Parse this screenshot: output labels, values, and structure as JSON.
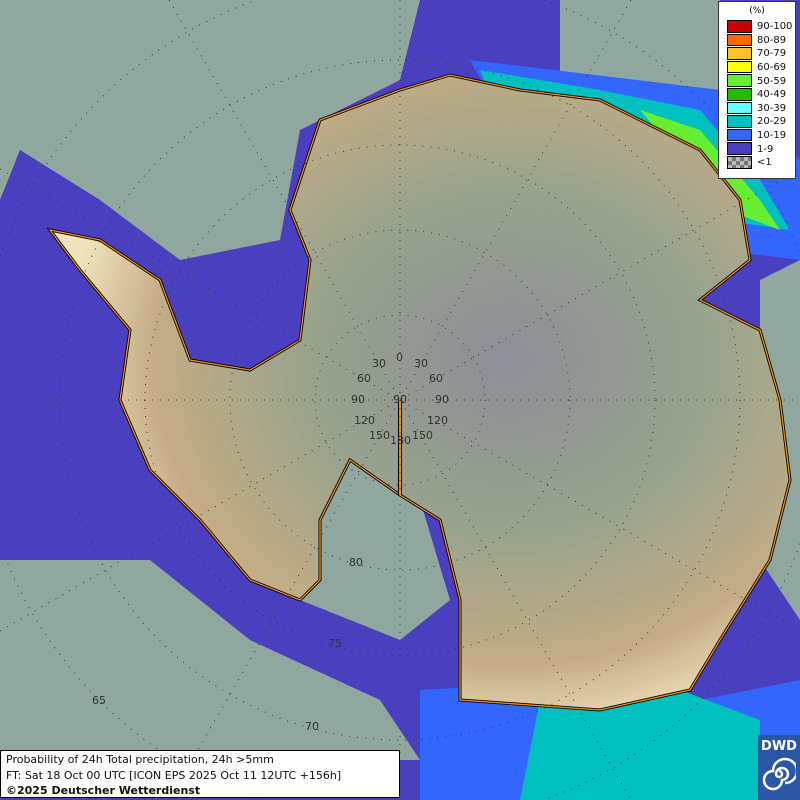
{
  "legend": {
    "unit": "(%)",
    "items": [
      {
        "label": "90-100",
        "color": "#cc0000"
      },
      {
        "label": "80-89",
        "color": "#ff6600"
      },
      {
        "label": "70-79",
        "color": "#ffc030"
      },
      {
        "label": "60-69",
        "color": "#ffff00"
      },
      {
        "label": "50-59",
        "color": "#66ee33"
      },
      {
        "label": "40-49",
        "color": "#22bb00"
      },
      {
        "label": "30-39",
        "color": "#66ffff"
      },
      {
        "label": "20-29",
        "color": "#00c0c0"
      },
      {
        "label": "10-19",
        "color": "#3366ff"
      },
      {
        "label": "1-9",
        "color": "#4a3fbf"
      },
      {
        "label": "<1",
        "color": "#9a9a9a"
      }
    ]
  },
  "grid": {
    "longitude_labels": [
      "0",
      "30",
      "30",
      "60",
      "60",
      "90",
      "90",
      "90",
      "120",
      "120",
      "150",
      "150",
      "180"
    ],
    "latitude_labels": [
      "80",
      "75",
      "70",
      "65"
    ]
  },
  "footer": {
    "line1": "Probability of 24h Total precipitation, 24h >5mm",
    "line2": "FT: Sat 18 Oct 00 UTC [ICON EPS 2025 Oct 11 12UTC +156h]",
    "line3": "©2025 Deutscher Wetterdienst"
  },
  "logo": {
    "text": "DWD"
  }
}
